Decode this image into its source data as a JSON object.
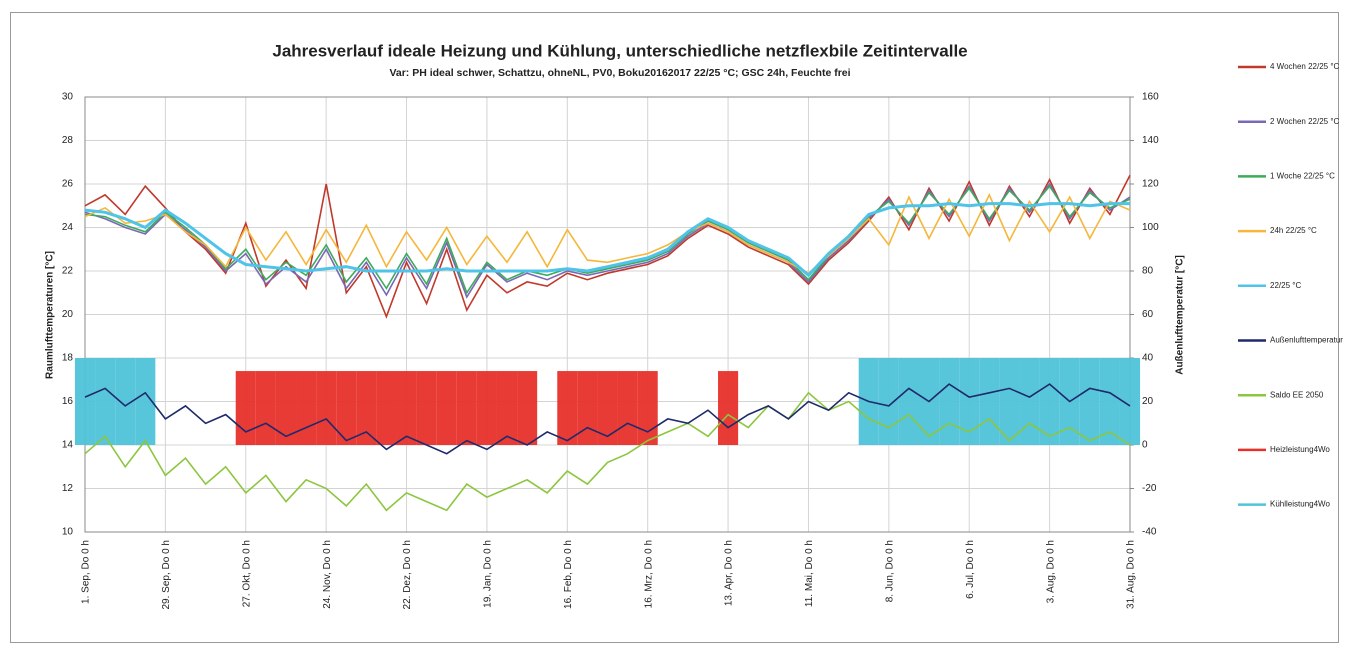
{
  "chart_data": {
    "type": "line",
    "title": "Jahresverlauf ideale Heizung und Kühlung, unterschiedliche netzflexbile Zeitintervalle",
    "subtitle": "Var: PH ideal schwer, Schattzu, ohneNL, PV0, Boku20162017 22/25 °C; GSC 24h, Feuchte frei",
    "ylabel": "Raumlufttemperaturen [°C]",
    "y2label": "Außenlufttemperatur [°C]",
    "x": [
      0,
      7,
      14,
      21,
      28,
      35,
      42,
      49,
      56,
      63,
      70,
      77,
      84,
      91,
      98,
      105,
      112,
      119,
      126,
      133,
      140,
      147,
      154,
      161,
      168,
      175,
      182,
      189,
      196,
      203,
      210,
      217,
      224,
      231,
      238,
      245,
      252,
      259,
      266,
      273,
      280,
      287,
      294,
      301,
      308,
      315,
      322,
      329,
      336,
      343,
      350,
      357,
      364
    ],
    "xlim": [
      0,
      364
    ],
    "xticks": [
      {
        "value": 0,
        "label": "1. Sep, Do 0 h"
      },
      {
        "value": 28,
        "label": "29. Sep, Do 0 h"
      },
      {
        "value": 56,
        "label": "27. Okt, Do 0 h"
      },
      {
        "value": 84,
        "label": "24. Nov, Do 0 h"
      },
      {
        "value": 112,
        "label": "22. Dez, Do 0 h"
      },
      {
        "value": 140,
        "label": "19. Jan, Do 0 h"
      },
      {
        "value": 168,
        "label": "16. Feb, Do 0 h"
      },
      {
        "value": 196,
        "label": "16. Mrz, Do 0 h"
      },
      {
        "value": 224,
        "label": "13. Apr, Do 0 h"
      },
      {
        "value": 252,
        "label": "11. Mai, Do 0 h"
      },
      {
        "value": 280,
        "label": "8. Jun, Do 0 h"
      },
      {
        "value": 308,
        "label": "6. Jul, Do 0 h"
      },
      {
        "value": 336,
        "label": "3. Aug, Do 0 h"
      },
      {
        "value": 364,
        "label": "31. Aug, Do 0 h"
      }
    ],
    "ylim": [
      10,
      30
    ],
    "yticks": [
      10,
      12,
      14,
      16,
      18,
      20,
      22,
      24,
      26,
      28,
      30
    ],
    "y2lim": [
      -40,
      160
    ],
    "y2ticks": [
      -40,
      -20,
      0,
      20,
      40,
      60,
      80,
      100,
      120,
      140,
      160
    ],
    "grid": true,
    "series": [
      {
        "name": "4 Wochen  22/25 °C",
        "color": "#c0392b",
        "values": [
          25.0,
          25.5,
          24.6,
          25.9,
          24.9,
          23.8,
          23.0,
          21.9,
          24.2,
          21.3,
          22.5,
          21.2,
          26.0,
          21.0,
          22.2,
          19.9,
          22.4,
          20.5,
          23.0,
          20.2,
          21.8,
          21.0,
          21.5,
          21.3,
          21.9,
          21.6,
          21.9,
          22.1,
          22.3,
          22.7,
          23.5,
          24.1,
          23.7,
          23.1,
          22.7,
          22.3,
          21.4,
          22.5,
          23.3,
          24.3,
          25.4,
          23.9,
          25.8,
          24.3,
          26.1,
          24.1,
          25.9,
          24.5,
          26.2,
          24.2,
          25.8,
          24.6,
          26.4
        ]
      },
      {
        "name": "2 Wochen  22/25 °C",
        "color": "#7b68b5",
        "values": [
          24.7,
          24.4,
          24.0,
          23.7,
          24.6,
          23.9,
          23.1,
          22.0,
          22.8,
          21.4,
          22.2,
          21.5,
          23.0,
          21.2,
          22.4,
          20.9,
          22.6,
          21.2,
          23.3,
          20.8,
          22.3,
          21.5,
          21.9,
          21.6,
          22.0,
          21.8,
          22.0,
          22.2,
          22.4,
          22.8,
          23.6,
          24.2,
          23.8,
          23.2,
          22.8,
          22.4,
          21.5,
          22.6,
          23.4,
          24.4,
          25.3,
          24.1,
          25.7,
          24.5,
          25.9,
          24.3,
          25.8,
          24.7,
          26.0,
          24.4,
          25.7,
          24.8,
          25.4
        ]
      },
      {
        "name": "1 Woche  22/25 °C",
        "color": "#3daa5c",
        "values": [
          24.6,
          24.5,
          24.1,
          23.8,
          24.7,
          24.0,
          23.2,
          22.1,
          23.0,
          21.6,
          22.4,
          21.8,
          23.2,
          21.5,
          22.6,
          21.2,
          22.8,
          21.4,
          23.5,
          21.0,
          22.4,
          21.6,
          22.0,
          21.8,
          22.1,
          21.9,
          22.1,
          22.3,
          22.5,
          22.9,
          23.7,
          24.3,
          23.9,
          23.3,
          22.9,
          22.5,
          21.6,
          22.7,
          23.5,
          24.5,
          25.2,
          24.2,
          25.6,
          24.6,
          25.8,
          24.4,
          25.7,
          24.8,
          25.9,
          24.5,
          25.6,
          24.9,
          25.3
        ]
      },
      {
        "name": "24h 22/25 °C",
        "color": "#f5b73b",
        "values": [
          24.5,
          24.9,
          24.2,
          24.3,
          24.6,
          23.8,
          23.2,
          22.2,
          24.0,
          22.5,
          23.8,
          22.3,
          23.9,
          22.4,
          24.1,
          22.2,
          23.8,
          22.5,
          24.0,
          22.3,
          23.6,
          22.4,
          23.8,
          22.2,
          23.9,
          22.5,
          22.4,
          22.6,
          22.8,
          23.2,
          23.8,
          24.2,
          23.8,
          23.2,
          22.8,
          22.4,
          21.9,
          22.7,
          23.5,
          24.4,
          23.2,
          25.4,
          23.5,
          25.3,
          23.6,
          25.5,
          23.4,
          25.2,
          23.8,
          25.4,
          23.5,
          25.2,
          24.8
        ]
      },
      {
        "name": "22/25 °C",
        "color": "#4fc3e8",
        "values": [
          24.8,
          24.7,
          24.4,
          24.0,
          24.8,
          24.2,
          23.5,
          22.8,
          22.3,
          22.2,
          22.1,
          22.0,
          22.1,
          22.2,
          22.0,
          22.0,
          22.0,
          22.0,
          22.1,
          22.0,
          22.0,
          22.0,
          22.0,
          22.0,
          22.1,
          22.0,
          22.2,
          22.4,
          22.6,
          23.0,
          23.8,
          24.4,
          24.0,
          23.4,
          23.0,
          22.6,
          21.8,
          22.8,
          23.6,
          24.6,
          24.9,
          25.0,
          25.0,
          25.1,
          25.0,
          25.1,
          25.1,
          25.0,
          25.1,
          25.1,
          25.0,
          25.1,
          25.1
        ]
      },
      {
        "name": "Außenlufttemperatur",
        "color": "#1f2a6b",
        "axis": "y2",
        "values": [
          22,
          26,
          18,
          24,
          12,
          18,
          10,
          14,
          6,
          10,
          4,
          8,
          12,
          2,
          6,
          -2,
          4,
          0,
          -4,
          2,
          -2,
          4,
          0,
          6,
          2,
          8,
          4,
          10,
          6,
          12,
          10,
          16,
          8,
          14,
          18,
          12,
          20,
          16,
          24,
          20,
          18,
          26,
          20,
          28,
          22,
          24,
          26,
          22,
          28,
          20,
          26,
          24,
          18
        ]
      },
      {
        "name": "Saldo EE 2050",
        "color": "#8cc63f",
        "axis": "y2",
        "values": [
          -4,
          4,
          -10,
          2,
          -14,
          -6,
          -18,
          -10,
          -22,
          -14,
          -26,
          -16,
          -20,
          -28,
          -18,
          -30,
          -22,
          -26,
          -30,
          -18,
          -24,
          -20,
          -16,
          -22,
          -12,
          -18,
          -8,
          -4,
          2,
          6,
          10,
          4,
          14,
          8,
          18,
          12,
          24,
          16,
          20,
          12,
          8,
          14,
          4,
          10,
          6,
          12,
          2,
          10,
          4,
          8,
          2,
          6,
          0
        ]
      },
      {
        "name": "Heizleistung4Wo",
        "color": "#e8302a",
        "axis": "y2",
        "kind": "bar",
        "values": [
          0,
          0,
          0,
          0,
          0,
          0,
          0,
          0,
          34,
          34,
          34,
          34,
          34,
          34,
          34,
          34,
          34,
          34,
          34,
          34,
          34,
          34,
          34,
          0,
          34,
          34,
          34,
          34,
          34,
          0,
          0,
          0,
          34,
          0,
          0,
          0,
          0,
          0,
          0,
          0,
          0,
          0,
          0,
          0,
          0,
          0,
          0,
          0,
          0,
          0,
          0,
          0,
          0
        ]
      },
      {
        "name": "Kühlleistung4Wo",
        "color": "#4fc3d8",
        "axis": "y2",
        "kind": "bar",
        "values": [
          40,
          40,
          40,
          40,
          0,
          0,
          0,
          0,
          0,
          0,
          0,
          0,
          0,
          0,
          0,
          0,
          0,
          0,
          0,
          0,
          0,
          0,
          0,
          0,
          0,
          0,
          0,
          0,
          0,
          0,
          0,
          0,
          0,
          0,
          0,
          0,
          0,
          0,
          0,
          40,
          40,
          40,
          40,
          40,
          40,
          40,
          40,
          40,
          40,
          40,
          40,
          40,
          40
        ]
      }
    ]
  }
}
